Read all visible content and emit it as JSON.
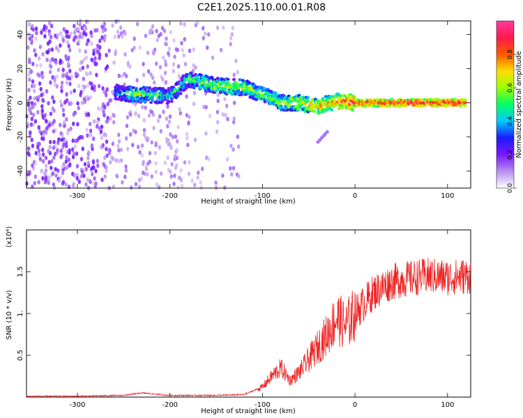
{
  "title": "C2E1.2025.110.00.01.R08",
  "chart_data": [
    {
      "type": "heatmap",
      "xlabel": "Height of straight line (km)",
      "ylabel": "Frequency (Hz)",
      "xlim": [
        -355,
        125
      ],
      "ylim": [
        -50,
        48
      ],
      "x_ticks": [
        -300,
        -200,
        -100,
        0,
        100
      ],
      "y_ticks": [
        -40,
        -20,
        0,
        20,
        40
      ],
      "colorbar": {
        "label": "Normalized spectral amplitude",
        "range": [
          0.0,
          1.0
        ],
        "ticks": [
          "0.0",
          "0.2",
          "0.4",
          "0.6",
          "0.8"
        ],
        "colors": [
          "#ffffff",
          "#b68ef0",
          "#7a17ff",
          "#1b1bff",
          "#00c8ff",
          "#00ff66",
          "#9cff00",
          "#ffdd00",
          "#ff5a00",
          "#ff1a4d",
          "#ff3aa0"
        ]
      },
      "ridge": {
        "description_points": [
          {
            "x": -260,
            "y": 6,
            "amp": 0.35
          },
          {
            "x": -240,
            "y": 5,
            "amp": 0.55
          },
          {
            "x": -200,
            "y": 4,
            "amp": 0.45
          },
          {
            "x": -180,
            "y": 14,
            "amp": 0.5
          },
          {
            "x": -150,
            "y": 10,
            "amp": 0.6
          },
          {
            "x": -120,
            "y": 9,
            "amp": 0.6
          },
          {
            "x": -100,
            "y": 5,
            "amp": 0.55
          },
          {
            "x": -80,
            "y": 0,
            "amp": 0.6
          },
          {
            "x": -60,
            "y": 0,
            "amp": 0.65
          },
          {
            "x": -40,
            "y": -2,
            "amp": 0.7
          },
          {
            "x": -20,
            "y": 1,
            "amp": 0.75
          },
          {
            "x": 0,
            "y": 0,
            "amp": 0.85
          },
          {
            "x": 50,
            "y": 0,
            "amp": 0.9
          },
          {
            "x": 120,
            "y": 0,
            "amp": 0.9
          }
        ]
      }
    },
    {
      "type": "line",
      "xlabel": "Height of straight line (km)",
      "ylabel": "SNR (10 * v/v)",
      "y_multiplier": "(x10⁴)",
      "xlim": [
        -355,
        125
      ],
      "ylim": [
        0,
        2.0
      ],
      "x_ticks": [
        -300,
        -200,
        -100,
        0,
        100
      ],
      "y_ticks": [
        0.5,
        1.0,
        1.5
      ],
      "y_tick_labels": [
        "0.5",
        "1.",
        "1.5"
      ],
      "series": [
        {
          "color": "#ee2222",
          "x": [
            -355,
            -300,
            -250,
            -230,
            -200,
            -150,
            -120,
            -100,
            -90,
            -80,
            -70,
            -60,
            -50,
            -40,
            -30,
            -20,
            -10,
            0,
            20,
            40,
            60,
            80,
            100,
            125
          ],
          "y": [
            0.01,
            0.01,
            0.02,
            0.05,
            0.02,
            0.02,
            0.03,
            0.12,
            0.25,
            0.35,
            0.2,
            0.3,
            0.45,
            0.6,
            0.75,
            0.95,
            0.85,
            1.0,
            1.25,
            1.38,
            1.42,
            1.45,
            1.43,
            1.45
          ]
        }
      ]
    }
  ]
}
